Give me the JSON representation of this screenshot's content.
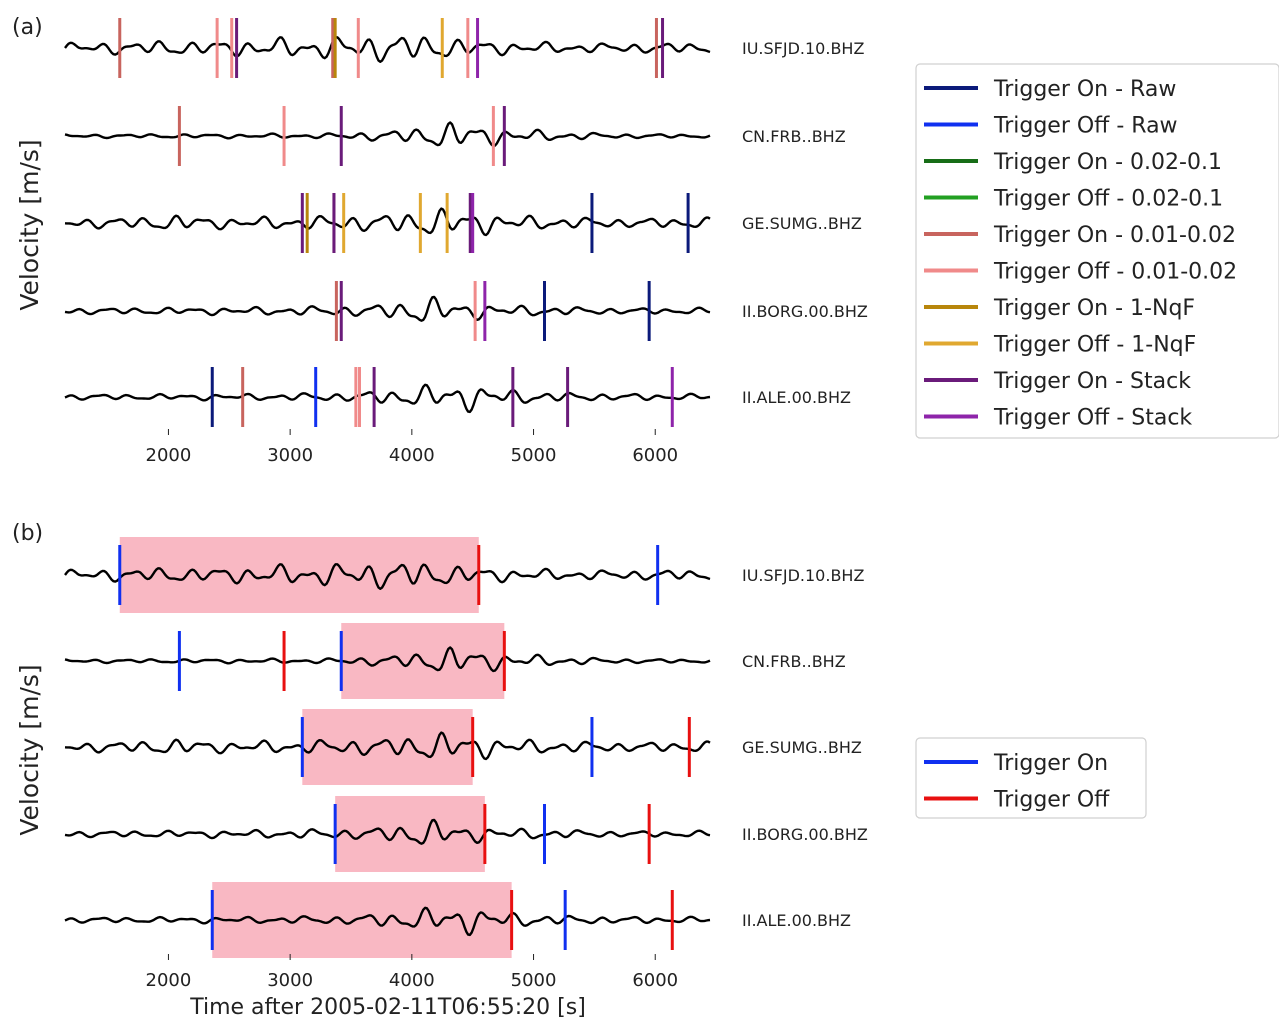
{
  "chart_data": [
    {
      "type": "line",
      "panel": "(a)",
      "ylabel": "Velocity [m/s]",
      "xlabel": "",
      "xlim": [
        1150,
        6450
      ],
      "xticks": [
        2000,
        3000,
        4000,
        5000,
        6000
      ],
      "grid": false,
      "legend_placement": "right",
      "stations": [
        "IU.SFJD.10.BHZ",
        "CN.FRB..BHZ",
        "GE.SUMG..BHZ",
        "II.BORG.00.BHZ",
        "II.ALE.00.BHZ"
      ],
      "series": [
        {
          "name": "Trigger On - Raw",
          "color": "#0b1a7a",
          "x": [
            [],
            [],
            [
              5480,
              6270
            ],
            [
              5090,
              5950
            ],
            [
              2360
            ]
          ]
        },
        {
          "name": "Trigger Off - Raw",
          "color": "#1030f0",
          "x": [
            [],
            [],
            [],
            [],
            [
              3210
            ]
          ]
        },
        {
          "name": "Trigger On - 0.02-0.1",
          "color": "#176d17",
          "x": [
            [],
            [],
            [],
            [],
            []
          ]
        },
        {
          "name": "Trigger Off - 0.02-0.1",
          "color": "#22a022",
          "x": [
            [],
            [],
            [],
            [],
            []
          ]
        },
        {
          "name": "Trigger On - 0.01-0.02",
          "color": "#c8645e",
          "x": [
            [
              1600,
              3350,
              6010
            ],
            [
              2090
            ],
            [
              3360
            ],
            [
              3380
            ],
            [
              2610
            ]
          ]
        },
        {
          "name": "Trigger Off - 0.01-0.02",
          "color": "#f08a8a",
          "x": [
            [
              2400,
              2520,
              3560,
              4460
            ],
            [
              2950,
              4670
            ],
            [],
            [
              4520
            ],
            [
              3540,
              3570
            ]
          ]
        },
        {
          "name": "Trigger On - 1-NqF",
          "color": "#b8860b",
          "x": [
            [
              3370
            ],
            [],
            [
              3140
            ],
            [],
            []
          ]
        },
        {
          "name": "Trigger Off - 1-NqF",
          "color": "#e0a830",
          "x": [
            [
              4250
            ],
            [],
            [
              3440,
              4070,
              4290
            ],
            [],
            []
          ]
        },
        {
          "name": "Trigger On - Stack",
          "color": "#6a1b7a",
          "x": [
            [
              2560,
              6060
            ],
            [
              3420,
              4760
            ],
            [
              3100,
              3360,
              4480
            ],
            [
              3420
            ],
            [
              3690,
              4830,
              5280
            ]
          ]
        },
        {
          "name": "Trigger Off - Stack",
          "color": "#8e24aa",
          "x": [
            [
              4540
            ],
            [],
            [
              4500
            ],
            [
              4600
            ],
            [
              6140
            ]
          ]
        }
      ]
    },
    {
      "type": "line",
      "panel": "(b)",
      "ylabel": "Velocity [m/s]",
      "xlabel": "Time after 2005-02-11T06:55:20 [s]",
      "xlim": [
        1150,
        6450
      ],
      "xticks": [
        2000,
        3000,
        4000,
        5000,
        6000
      ],
      "grid": false,
      "legend_placement": "right",
      "stations": [
        "IU.SFJD.10.BHZ",
        "CN.FRB..BHZ",
        "GE.SUMG..BHZ",
        "II.BORG.00.BHZ",
        "II.ALE.00.BHZ"
      ],
      "highlight_windows": [
        [
          1600,
          4550
        ],
        [
          3420,
          4760
        ],
        [
          3100,
          4500
        ],
        [
          3370,
          4600
        ],
        [
          2360,
          4820
        ]
      ],
      "series": [
        {
          "name": "Trigger On",
          "color": "#1030f0",
          "x": [
            [
              1600,
              6020
            ],
            [
              2090,
              3420
            ],
            [
              3100,
              5480
            ],
            [
              3370,
              5090
            ],
            [
              2360,
              5260
            ]
          ]
        },
        {
          "name": "Trigger Off",
          "color": "#e81010",
          "x": [
            [
              4550
            ],
            [
              2950,
              4760
            ],
            [
              4500,
              6280
            ],
            [
              4600,
              5950
            ],
            [
              4820,
              6140
            ]
          ]
        }
      ]
    }
  ]
}
